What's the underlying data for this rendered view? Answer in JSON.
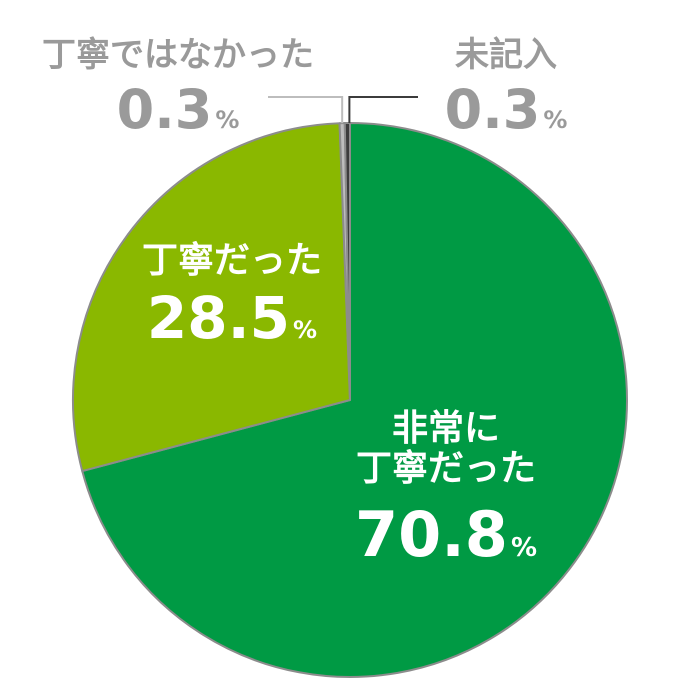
{
  "chart_data": {
    "type": "pie",
    "title": "",
    "slices": [
      {
        "label_lines": [
          "非常に",
          "丁寧だった"
        ],
        "value": 70.8,
        "value_text": "70.8",
        "color": "#009a44",
        "label_color": "#ffffff"
      },
      {
        "label_lines": [
          "丁寧だった"
        ],
        "value": 28.5,
        "value_text": "28.5",
        "color": "#8ab800",
        "label_color": "#ffffff"
      },
      {
        "label_lines": [
          "丁寧ではなかった"
        ],
        "value": 0.3,
        "value_text": "0.3",
        "color": "#bdbdbd",
        "label_color": "#9a9a9a"
      },
      {
        "label_lines": [
          "未記入"
        ],
        "value": 0.3,
        "value_text": "0.3",
        "color": "#3c3c3c",
        "label_color": "#9a9a9a"
      }
    ],
    "unit": "%",
    "start_angle_deg": 0,
    "direction": "clockwise",
    "slice_border_color": "#8c8c8c"
  }
}
